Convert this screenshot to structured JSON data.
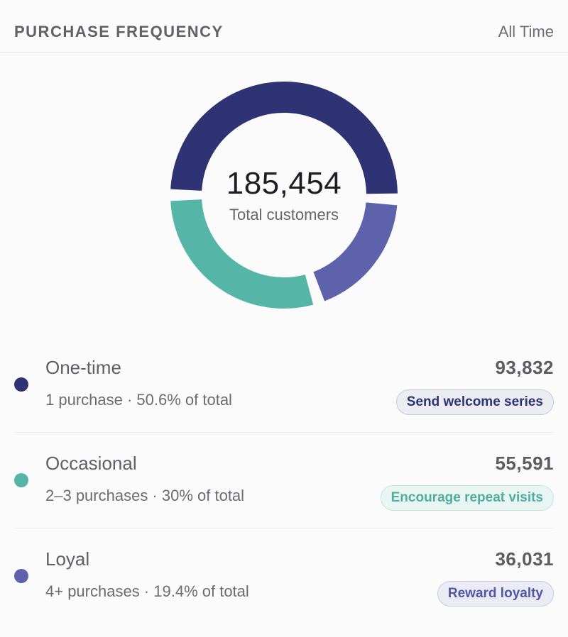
{
  "header": {
    "title": "PURCHASE FREQUENCY",
    "range": "All Time"
  },
  "summary": {
    "total_value": "185,454",
    "total_label": "Total customers"
  },
  "chart_data": {
    "type": "pie",
    "categories": [
      "One-time",
      "Occasional",
      "Loyal"
    ],
    "values": [
      93832,
      55591,
      36031
    ],
    "colors": [
      "#2f3374",
      "#55b6a8",
      "#5e62ab"
    ],
    "title": "PURCHASE FREQUENCY"
  },
  "segments": [
    {
      "name": "One-time",
      "detail": "1 purchase · 50.6% of total",
      "value": "93,832",
      "action": "Send welcome series",
      "color": "#2f3374",
      "badge_bg": "#ececf3",
      "badge_border": "#c9cad8",
      "badge_text": "#2f3374"
    },
    {
      "name": "Occasional",
      "detail": "2–3 purchases · 30% of total",
      "value": "55,591",
      "action": "Encourage repeat visits",
      "color": "#55b6a8",
      "badge_bg": "#e9f5f2",
      "badge_border": "#c3e4dd",
      "badge_text": "#4faea0"
    },
    {
      "name": "Loyal",
      "detail": "4+ purchases · 19.4% of total",
      "value": "36,031",
      "action": "Reward loyalty",
      "color": "#5e62ab",
      "badge_bg": "#ebebf5",
      "badge_border": "#cbcce3",
      "badge_text": "#5356a3"
    }
  ]
}
